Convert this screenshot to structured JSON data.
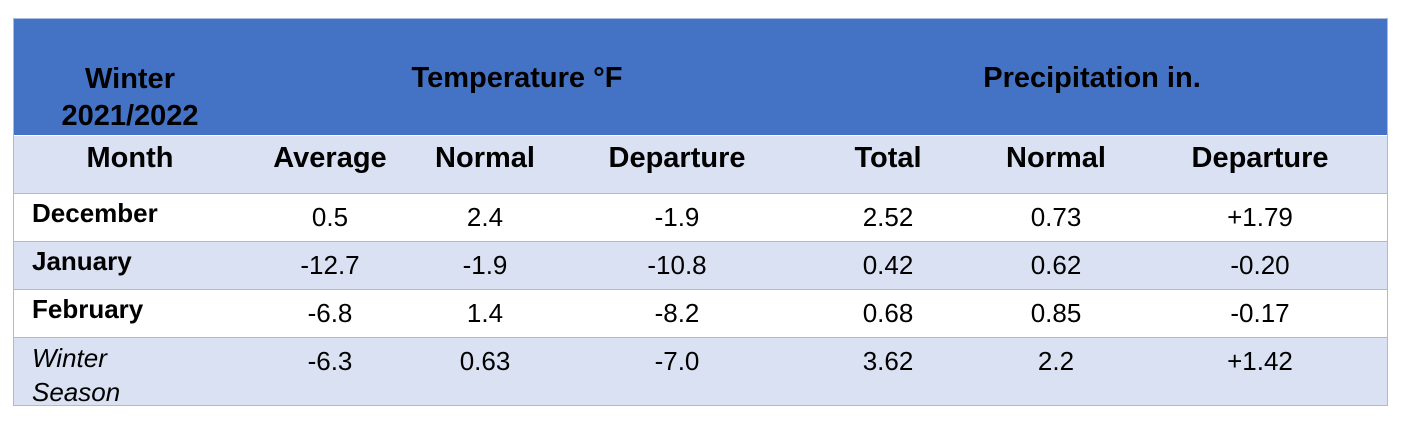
{
  "header": {
    "winter_line1": "Winter",
    "winter_line2": "2021/2022",
    "temperature": "Temperature °F",
    "precipitation": "Precipitation in."
  },
  "columns": [
    "Month",
    "Average",
    "Normal",
    "Departure",
    "Total",
    "Normal",
    "Departure"
  ],
  "rows": [
    {
      "month": "December",
      "values": [
        "0.5",
        "2.4",
        "-1.9",
        "2.52",
        "0.73",
        "+1.79"
      ]
    },
    {
      "month": "January",
      "values": [
        "-12.7",
        "-1.9",
        "-10.8",
        "0.42",
        "0.62",
        "-0.20"
      ]
    },
    {
      "month": "February",
      "values": [
        "-6.8",
        "1.4",
        "-8.2",
        "0.68",
        "0.85",
        "-0.17"
      ]
    }
  ],
  "season": {
    "line1": "Winter",
    "line2": "Season",
    "values": [
      "-6.3",
      "0.63",
      "-7.0",
      "3.62",
      "2.2",
      "+1.42"
    ]
  },
  "colors": {
    "header_bg": "#4472c4",
    "band_bg": "#d9e1f2",
    "border": "#a9bbd9"
  }
}
